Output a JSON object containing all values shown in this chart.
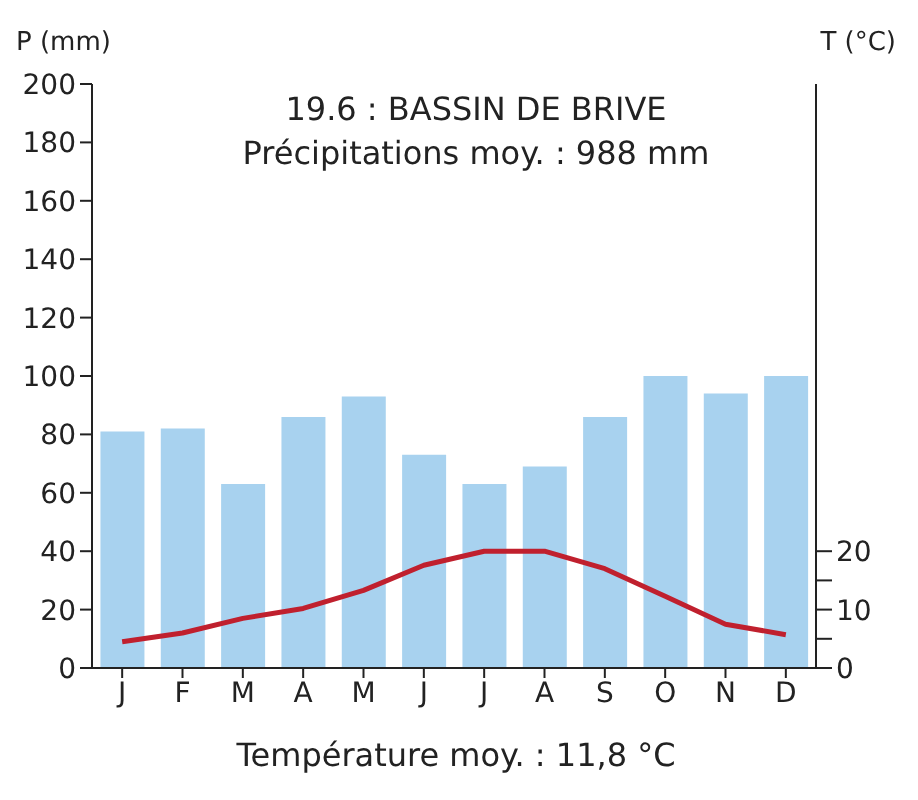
{
  "chart_data": {
    "type": "bar",
    "title": "19.6 : BASSIN DE BRIVE",
    "subtitle": "Précipitations moy. : 988 mm",
    "ylabel": "P (mm)",
    "y2label": "T (°C)",
    "annotations": [
      "Température moy. : 11,8 °C"
    ],
    "categories": [
      "J",
      "F",
      "M",
      "A",
      "M",
      "J",
      "J",
      "A",
      "S",
      "O",
      "N",
      "D"
    ],
    "series": [
      {
        "color": "#a8d2ef",
        "values": [
          81,
          82,
          63,
          86,
          93,
          73,
          63,
          69,
          86,
          100,
          94,
          100
        ]
      },
      {
        "type": "line",
        "axis": "y2",
        "color": "#c0202e",
        "values": [
          4.5,
          6,
          8.5,
          10.2,
          13.3,
          17.6,
          20,
          20,
          17,
          12.3,
          7.5,
          5.7
        ]
      }
    ],
    "ylim": [
      0,
      200
    ],
    "yticks": [
      0,
      20,
      40,
      60,
      80,
      100,
      120,
      140,
      160,
      180,
      200
    ],
    "y2lim": [
      0,
      100
    ],
    "y2ticks": [
      0,
      {
        "value": 5,
        "label": null
      },
      10,
      {
        "value": 15,
        "label": null
      },
      20
    ],
    "grid": false,
    "legend": false,
    "marker": "none",
    "line_style": "solid"
  }
}
